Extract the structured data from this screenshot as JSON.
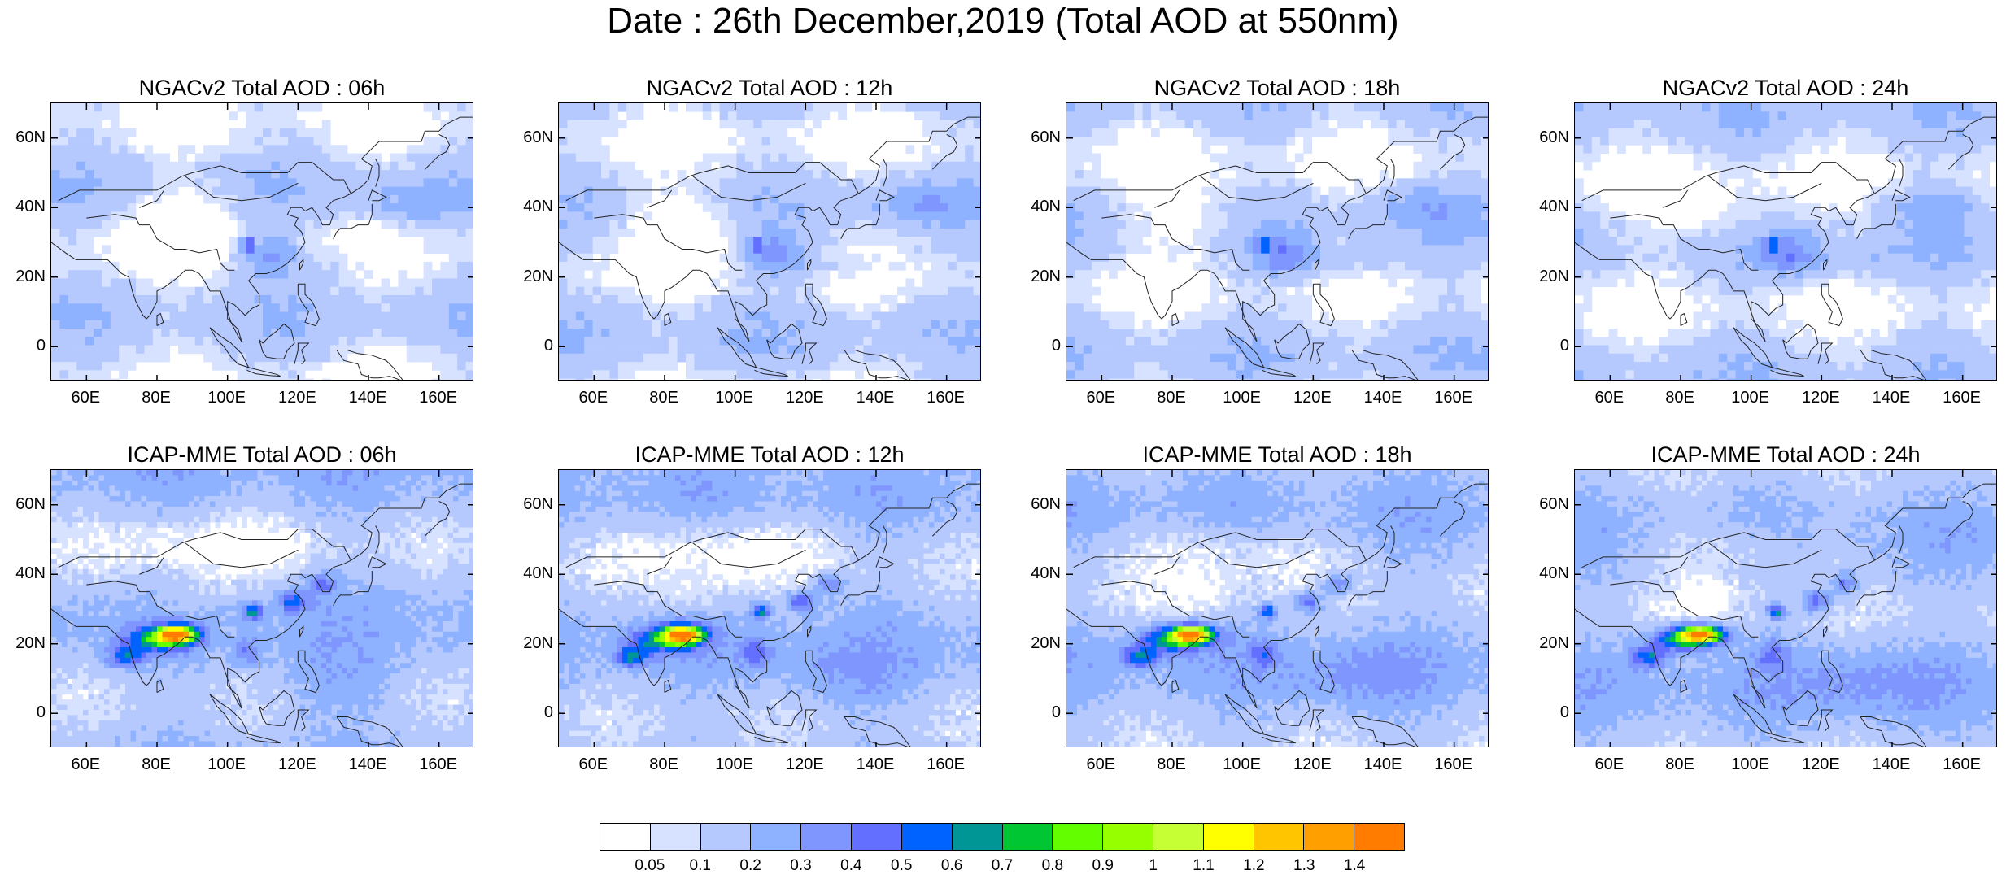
{
  "title": "Date : 26th December,2019 (Total AOD at 550nm)",
  "panels": [
    {
      "id": "ngac-06",
      "title": "NGACv2 Total AOD : 06h"
    },
    {
      "id": "ngac-12",
      "title": "NGACv2 Total AOD : 12h"
    },
    {
      "id": "ngac-18",
      "title": "NGACv2 Total AOD : 18h"
    },
    {
      "id": "ngac-24",
      "title": "NGACv2 Total AOD : 24h"
    },
    {
      "id": "icap-06",
      "title": "ICAP-MME Total AOD : 06h"
    },
    {
      "id": "icap-12",
      "title": "ICAP-MME Total AOD : 12h"
    },
    {
      "id": "icap-18",
      "title": "ICAP-MME Total AOD : 18h"
    },
    {
      "id": "icap-24",
      "title": "ICAP-MME Total AOD : 24h"
    }
  ],
  "lat_labels": [
    "60N",
    "40N",
    "20N",
    "0"
  ],
  "lon_labels": [
    "60E",
    "80E",
    "100E",
    "120E",
    "140E",
    "160E"
  ],
  "map_extent": {
    "lon_min": 50,
    "lon_max": 170,
    "lat_min": -10,
    "lat_max": 70
  },
  "colorbar": {
    "labels": [
      "0.05",
      "0.1",
      "0.2",
      "0.3",
      "0.4",
      "0.5",
      "0.6",
      "0.7",
      "0.8",
      "0.9",
      "1",
      "1.1",
      "1.2",
      "1.3",
      "1.4"
    ],
    "colors": [
      "#ffffff",
      "#d6e2ff",
      "#b5c9ff",
      "#8eb2ff",
      "#7f96ff",
      "#6370ff",
      "#0063ff",
      "#009696",
      "#00c633",
      "#63ff00",
      "#96ff00",
      "#c6ff33",
      "#ffff00",
      "#ffc600",
      "#ffa000",
      "#ff7c00",
      "#ff1900"
    ]
  }
}
